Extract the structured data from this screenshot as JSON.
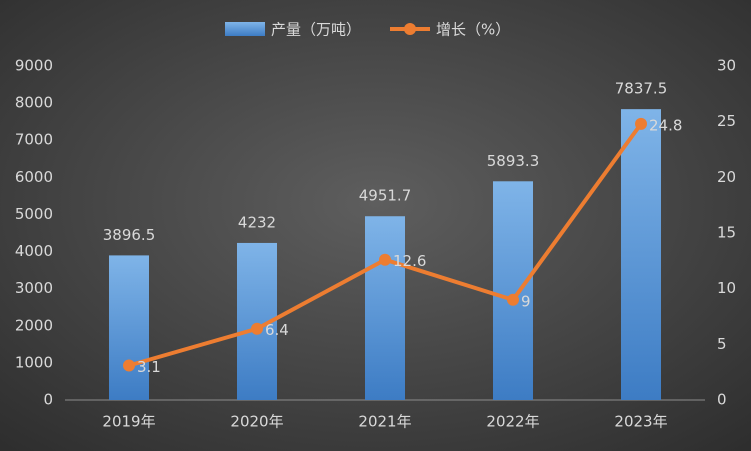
{
  "chart_data": {
    "type": "bar",
    "categories": [
      "2019年",
      "2020年",
      "2021年",
      "2022年",
      "2023年"
    ],
    "series": [
      {
        "name": "产量（万吨）",
        "type": "bar",
        "color": "#5b9bd5",
        "values": [
          3896.5,
          4232,
          4951.7,
          5893.3,
          7837.5
        ]
      },
      {
        "name": "增长（%）",
        "type": "line",
        "axis": "y2",
        "color": "#ed7d31",
        "values": [
          3.1,
          6.4,
          12.6,
          9,
          24.8
        ]
      }
    ],
    "ylim": [
      0,
      9000
    ],
    "yticks": [
      0,
      1000,
      2000,
      3000,
      4000,
      5000,
      6000,
      7000,
      8000,
      9000
    ],
    "y2lim": [
      0,
      30
    ],
    "y2ticks": [
      0,
      5,
      10,
      15,
      20,
      25,
      30
    ],
    "grid": false,
    "legend": "top"
  }
}
